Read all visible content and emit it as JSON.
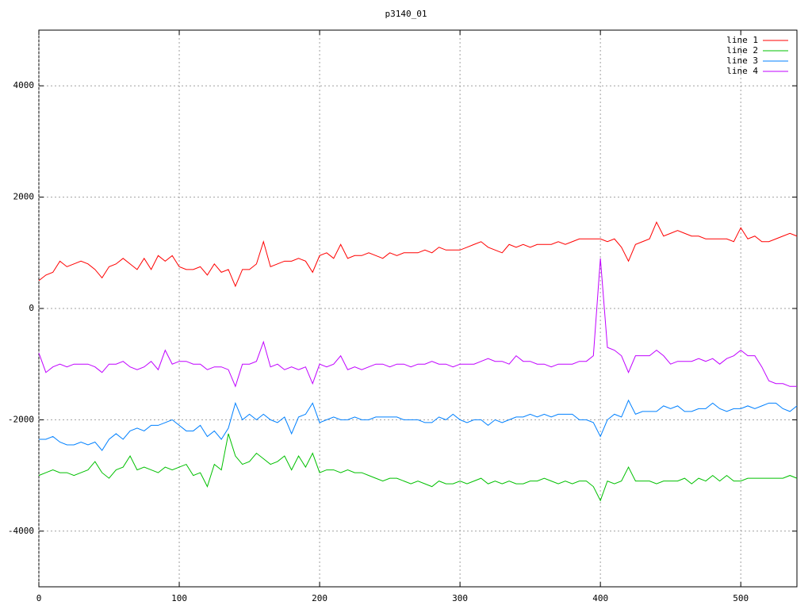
{
  "chart_data": {
    "type": "line",
    "title": "p3140_01",
    "x": [
      0,
      5,
      10,
      15,
      20,
      25,
      30,
      35,
      40,
      45,
      50,
      55,
      60,
      65,
      70,
      75,
      80,
      85,
      90,
      95,
      100,
      105,
      110,
      115,
      120,
      125,
      130,
      135,
      140,
      145,
      150,
      155,
      160,
      165,
      170,
      175,
      180,
      185,
      190,
      195,
      200,
      205,
      210,
      215,
      220,
      225,
      230,
      235,
      240,
      245,
      250,
      255,
      260,
      265,
      270,
      275,
      280,
      285,
      290,
      295,
      300,
      305,
      310,
      315,
      320,
      325,
      330,
      335,
      340,
      345,
      350,
      355,
      360,
      365,
      370,
      375,
      380,
      385,
      390,
      395,
      400,
      405,
      410,
      415,
      420,
      425,
      430,
      435,
      440,
      445,
      450,
      455,
      460,
      465,
      470,
      475,
      480,
      485,
      490,
      495,
      500,
      505,
      510,
      515,
      520,
      525,
      530,
      535,
      540
    ],
    "series": [
      {
        "name": "line 1",
        "color": "#ff0000",
        "values": [
          500,
          600,
          650,
          850,
          750,
          800,
          850,
          800,
          700,
          550,
          750,
          800,
          900,
          800,
          700,
          900,
          700,
          950,
          850,
          950,
          750,
          700,
          700,
          750,
          600,
          800,
          650,
          700,
          400,
          700,
          700,
          800,
          1200,
          750,
          800,
          850,
          850,
          900,
          850,
          650,
          950,
          1000,
          900,
          1150,
          900,
          950,
          950,
          1000,
          950,
          900,
          1000,
          950,
          1000,
          1000,
          1000,
          1050,
          1000,
          1100,
          1050,
          1050,
          1050,
          1100,
          1150,
          1200,
          1100,
          1050,
          1000,
          1150,
          1100,
          1150,
          1100,
          1150,
          1150,
          1150,
          1200,
          1150,
          1200,
          1250,
          1250,
          1250,
          1250,
          1200,
          1250,
          1100,
          850,
          1150,
          1200,
          1250,
          1550,
          1300,
          1350,
          1400,
          1350,
          1300,
          1300,
          1250,
          1250,
          1250,
          1250,
          1200,
          1450,
          1250,
          1300,
          1200,
          1200,
          1250,
          1300,
          1350,
          1300
        ]
      },
      {
        "name": "line 2",
        "color": "#00c000",
        "values": [
          -3000,
          -2950,
          -2900,
          -2950,
          -2950,
          -3000,
          -2950,
          -2900,
          -2750,
          -2950,
          -3050,
          -2900,
          -2850,
          -2650,
          -2900,
          -2850,
          -2900,
          -2950,
          -2850,
          -2900,
          -2850,
          -2800,
          -3000,
          -2950,
          -3200,
          -2800,
          -2900,
          -2250,
          -2650,
          -2800,
          -2750,
          -2600,
          -2700,
          -2800,
          -2750,
          -2650,
          -2900,
          -2650,
          -2850,
          -2600,
          -2950,
          -2900,
          -2900,
          -2950,
          -2900,
          -2950,
          -2950,
          -3000,
          -3050,
          -3100,
          -3050,
          -3050,
          -3100,
          -3150,
          -3100,
          -3150,
          -3200,
          -3100,
          -3150,
          -3150,
          -3100,
          -3150,
          -3100,
          -3050,
          -3150,
          -3100,
          -3150,
          -3100,
          -3150,
          -3150,
          -3100,
          -3100,
          -3050,
          -3100,
          -3150,
          -3100,
          -3150,
          -3100,
          -3100,
          -3200,
          -3450,
          -3100,
          -3150,
          -3100,
          -2850,
          -3100,
          -3100,
          -3100,
          -3150,
          -3100,
          -3100,
          -3100,
          -3050,
          -3150,
          -3050,
          -3100,
          -3000,
          -3100,
          -3000,
          -3100,
          -3100,
          -3050,
          -3050,
          -3050,
          -3050,
          -3050,
          -3050,
          -3000,
          -3050
        ]
      },
      {
        "name": "line 3",
        "color": "#0080ff",
        "values": [
          -2350,
          -2350,
          -2300,
          -2400,
          -2450,
          -2450,
          -2400,
          -2450,
          -2400,
          -2550,
          -2350,
          -2250,
          -2350,
          -2200,
          -2150,
          -2200,
          -2100,
          -2100,
          -2050,
          -2000,
          -2100,
          -2200,
          -2200,
          -2100,
          -2300,
          -2200,
          -2350,
          -2150,
          -1700,
          -2000,
          -1900,
          -2000,
          -1900,
          -2000,
          -2050,
          -1950,
          -2250,
          -1950,
          -1900,
          -1700,
          -2050,
          -2000,
          -1950,
          -2000,
          -2000,
          -1950,
          -2000,
          -2000,
          -1950,
          -1950,
          -1950,
          -1950,
          -2000,
          -2000,
          -2000,
          -2050,
          -2050,
          -1950,
          -2000,
          -1900,
          -2000,
          -2050,
          -2000,
          -2000,
          -2100,
          -2000,
          -2050,
          -2000,
          -1950,
          -1950,
          -1900,
          -1950,
          -1900,
          -1950,
          -1900,
          -1900,
          -1900,
          -2000,
          -2000,
          -2050,
          -2300,
          -2000,
          -1900,
          -1950,
          -1650,
          -1900,
          -1850,
          -1850,
          -1850,
          -1750,
          -1800,
          -1750,
          -1850,
          -1850,
          -1800,
          -1800,
          -1700,
          -1800,
          -1850,
          -1800,
          -1800,
          -1750,
          -1800,
          -1750,
          -1700,
          -1700,
          -1800,
          -1850,
          -1750
        ]
      },
      {
        "name": "line 4",
        "color": "#c000ff",
        "values": [
          -800,
          -1150,
          -1050,
          -1000,
          -1050,
          -1000,
          -1000,
          -1000,
          -1050,
          -1150,
          -1000,
          -1000,
          -950,
          -1050,
          -1100,
          -1050,
          -950,
          -1100,
          -750,
          -1000,
          -950,
          -950,
          -1000,
          -1000,
          -1100,
          -1050,
          -1050,
          -1100,
          -1400,
          -1000,
          -1000,
          -950,
          -600,
          -1050,
          -1000,
          -1100,
          -1050,
          -1100,
          -1050,
          -1350,
          -1000,
          -1050,
          -1000,
          -850,
          -1100,
          -1050,
          -1100,
          -1050,
          -1000,
          -1000,
          -1050,
          -1000,
          -1000,
          -1050,
          -1000,
          -1000,
          -950,
          -1000,
          -1000,
          -1050,
          -1000,
          -1000,
          -1000,
          -950,
          -900,
          -950,
          -950,
          -1000,
          -850,
          -950,
          -950,
          -1000,
          -1000,
          -1050,
          -1000,
          -1000,
          -1000,
          -950,
          -950,
          -850,
          900,
          -700,
          -750,
          -850,
          -1150,
          -850,
          -850,
          -850,
          -750,
          -850,
          -1000,
          -950,
          -950,
          -950,
          -900,
          -950,
          -900,
          -1000,
          -900,
          -850,
          -750,
          -850,
          -850,
          -1050,
          -1300,
          -1350,
          -1350,
          -1400,
          -1400
        ]
      }
    ],
    "xlim": [
      0,
      540
    ],
    "ylim": [
      -5000,
      5000
    ],
    "xticks": [
      0,
      100,
      200,
      300,
      400,
      500
    ],
    "yticks": [
      -4000,
      -2000,
      0,
      2000,
      4000
    ],
    "grid": true,
    "legend": "top-right"
  }
}
